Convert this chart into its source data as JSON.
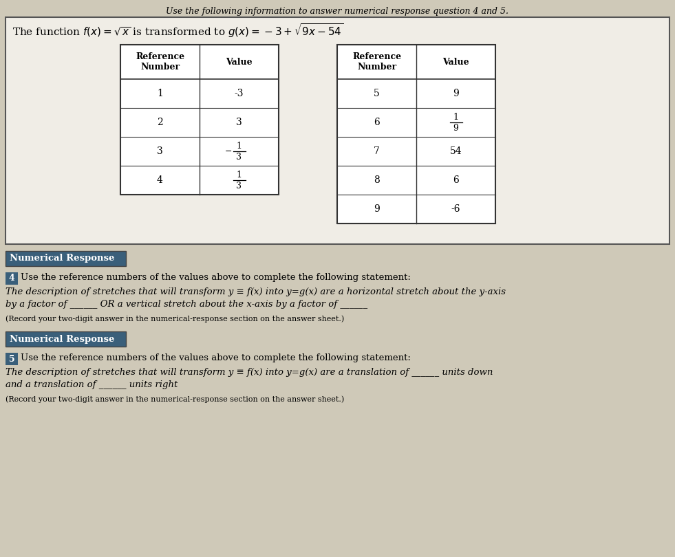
{
  "header_line": "Use the following information to answer numerical response question 4 and 5.",
  "bg_color": "#cfc9b8",
  "box_bg": "#f0ede4",
  "table_bg": "#f0ede4",
  "nr_label_bg": "#3a5f7a",
  "nr_label_text": "white",
  "q_num_bg": "#3a5f7a",
  "numerical_response_label": "Numerical Response",
  "q4_number": "4",
  "q4_intro": "Use the reference numbers of the values above to complete the following statement:",
  "q4_line1": "The description of stretches that will transform y ≡ f(x) into y=g(x) are a horizontal stretch about the y-axis",
  "q4_line2": "by a factor of ______ OR a vertical stretch about the x-axis by a factor of ______",
  "q4_footer": "(Record your two-digit answer in the numerical-response section on the answer sheet.)",
  "q5_number": "5",
  "q5_intro": "Use the reference numbers of the values above to complete the following statement:",
  "q5_line1": "The description of stretches that will transform y ≡ f(x) into y=g(x) are a translation of ______ units down",
  "q5_line2": "and a translation of ______ units right",
  "q5_footer": "(Record your two-digit answer in the numerical-response section on the answer sheet.)",
  "table_left_data": [
    [
      "1",
      "-3",
      false
    ],
    [
      "2",
      "3",
      false
    ],
    [
      "3",
      "-1/3",
      true
    ],
    [
      "4",
      "1/3",
      true
    ]
  ],
  "table_right_data": [
    [
      "5",
      "9",
      false
    ],
    [
      "6",
      "1/9",
      true
    ],
    [
      "7",
      "54",
      false
    ],
    [
      "8",
      "6",
      false
    ],
    [
      "9",
      "-6",
      false
    ]
  ]
}
